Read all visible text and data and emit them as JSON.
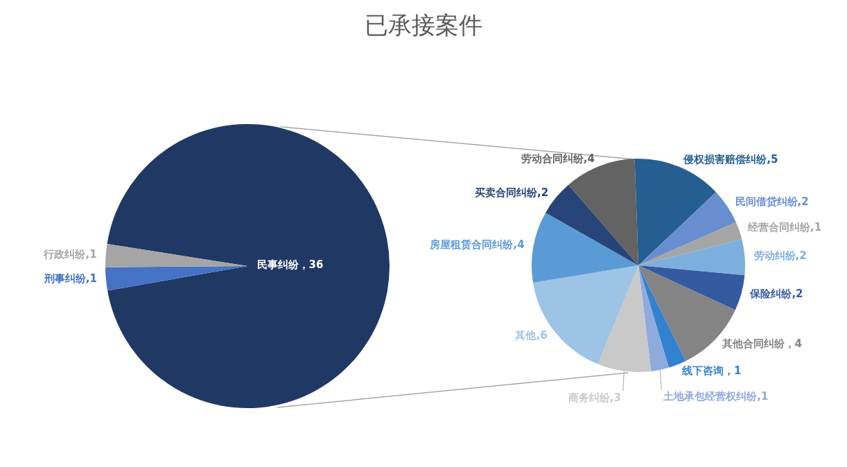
{
  "chart_data": [
    {
      "type": "pie",
      "title": "已承接案件",
      "categories": [
        "民事纠纷",
        "刑事纠纷",
        "行政纠纷"
      ],
      "values": [
        36,
        1,
        1
      ],
      "colors": [
        "#203864",
        "#4472c4",
        "#a5a5a5"
      ],
      "value_labels": [
        "，36",
        ",1",
        ",1"
      ]
    },
    {
      "type": "pie",
      "categories": [
        "侵权损害赔偿纠纷",
        "民间借贷纠纷",
        "经营合同纠纷",
        "劳动纠纷",
        "保险纠纷",
        "其他合同纠纷",
        "线下咨询",
        "土地承包经营权纠纷",
        "商务纠纷",
        "其他",
        "房屋租赁合同纠纷",
        "买卖合同纠纷",
        "劳动合同纠纷"
      ],
      "values": [
        5,
        2,
        1,
        2,
        2,
        4,
        1,
        1,
        3,
        6,
        4,
        2,
        4
      ],
      "colors": [
        "#255e91",
        "#698ed0",
        "#a5a5a5",
        "#7cafdd",
        "#335aa1",
        "#848484",
        "#3282d0",
        "#8faadc",
        "#c9c9c9",
        "#9dc3e6",
        "#5b9bd5",
        "#264478",
        "#636363"
      ],
      "value_labels": [
        ",5",
        ",2",
        ",1",
        ",2",
        ",2",
        "，4",
        "，1",
        ",1",
        ",3",
        ",6",
        ",4",
        ",2",
        ",4"
      ]
    }
  ]
}
